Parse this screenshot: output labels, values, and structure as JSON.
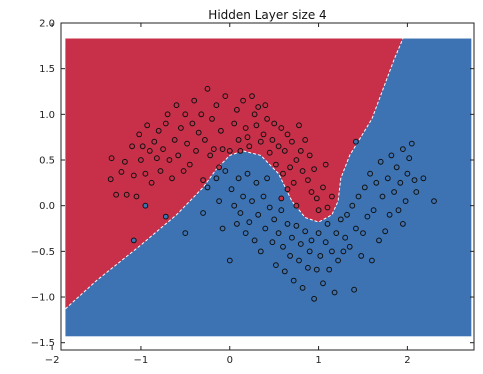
{
  "chart_data": {
    "type": "scatter",
    "title": "Hidden Layer size 4",
    "xlabel": "",
    "ylabel": "",
    "xlim": [
      -1.9,
      2.75
    ],
    "ylim": [
      -1.58,
      2.0
    ],
    "xticks": [
      -2,
      -1,
      0,
      1,
      2
    ],
    "xtick_labels": [
      "−2",
      "−1",
      "0",
      "1",
      "2"
    ],
    "yticks": [
      -1.5,
      -1.0,
      -0.5,
      0.0,
      0.5,
      1.0,
      1.5,
      2.0
    ],
    "ytick_labels": [
      "−1.5",
      "−1.0",
      "−0.5",
      "0.0",
      "0.5",
      "1.0",
      "1.5",
      "2.0"
    ],
    "grid": false,
    "colors": {
      "red_region": "#c8304a",
      "blue_region": "#3d73b3",
      "red_point": "#c8304a",
      "blue_point": "#3d73b3",
      "point_edge": "#111111",
      "boundary": "#ffffff"
    },
    "decision_boundary": [
      [
        -1.85,
        -1.13
      ],
      [
        -1.5,
        -0.82
      ],
      [
        -1.0,
        -0.43
      ],
      [
        -0.6,
        -0.1
      ],
      [
        -0.3,
        0.2
      ],
      [
        -0.15,
        0.4
      ],
      [
        0.0,
        0.55
      ],
      [
        0.15,
        0.6
      ],
      [
        0.35,
        0.55
      ],
      [
        0.55,
        0.35
      ],
      [
        0.7,
        0.05
      ],
      [
        0.85,
        -0.13
      ],
      [
        1.0,
        -0.18
      ],
      [
        1.15,
        -0.1
      ],
      [
        1.22,
        0.05
      ],
      [
        1.25,
        0.3
      ],
      [
        1.35,
        0.55
      ],
      [
        1.6,
        0.95
      ],
      [
        1.85,
        1.6
      ],
      [
        1.95,
        1.83
      ]
    ],
    "region_extent": {
      "x": [
        -1.85,
        2.72
      ],
      "y": [
        -1.43,
        1.83
      ]
    },
    "series": [
      {
        "class": 0,
        "points": [
          [
            -1.33,
            0.52
          ],
          [
            -1.34,
            0.29
          ],
          [
            -1.28,
            0.12
          ],
          [
            -1.22,
            0.37
          ],
          [
            -1.18,
            0.48
          ],
          [
            -1.16,
            0.12
          ],
          [
            -1.1,
            0.65
          ],
          [
            -1.08,
            0.33
          ],
          [
            -1.05,
            0.1
          ],
          [
            -1.02,
            0.78
          ],
          [
            -1.0,
            0.5
          ],
          [
            -0.98,
            0.65
          ],
          [
            -0.95,
            0.35
          ],
          [
            -0.93,
            0.88
          ],
          [
            -0.9,
            0.6
          ],
          [
            -0.88,
            0.25
          ],
          [
            -0.85,
            0.7
          ],
          [
            -0.82,
            0.52
          ],
          [
            -0.8,
            0.82
          ],
          [
            -0.78,
            0.38
          ],
          [
            -0.75,
            0.62
          ],
          [
            -0.72,
            0.9
          ],
          [
            -0.7,
            1.0
          ],
          [
            -0.68,
            0.5
          ],
          [
            -0.65,
            0.3
          ],
          [
            -0.62,
            0.72
          ],
          [
            -0.6,
            1.1
          ],
          [
            -0.58,
            0.55
          ],
          [
            -0.55,
            0.85
          ],
          [
            -0.52,
            0.38
          ],
          [
            -0.5,
            1.0
          ],
          [
            -0.48,
            0.68
          ],
          [
            -0.45,
            0.45
          ],
          [
            -0.42,
            0.9
          ],
          [
            -0.4,
            1.15
          ],
          [
            -0.38,
            0.6
          ],
          [
            -0.35,
            0.8
          ],
          [
            -0.32,
            1.0
          ],
          [
            -0.3,
            0.28
          ],
          [
            -0.28,
            0.72
          ],
          [
            -0.25,
            1.28
          ],
          [
            -0.22,
            0.55
          ],
          [
            -0.2,
            0.95
          ],
          [
            -0.18,
            0.62
          ],
          [
            -0.15,
            1.1
          ],
          [
            -0.12,
            0.42
          ],
          [
            -0.1,
            0.82
          ],
          [
            -0.08,
            0.62
          ],
          [
            -0.05,
            1.2
          ],
          [
            0.0,
            0.6
          ],
          [
            0.05,
            0.9
          ],
          [
            0.08,
            1.05
          ],
          [
            0.1,
            0.72
          ],
          [
            0.12,
            0.6
          ],
          [
            0.15,
            1.15
          ],
          [
            0.18,
            0.85
          ],
          [
            0.2,
            0.75
          ],
          [
            0.22,
            0.65
          ],
          [
            0.25,
            1.2
          ],
          [
            0.28,
            1.0
          ],
          [
            0.3,
            0.88
          ],
          [
            0.32,
            1.08
          ],
          [
            0.35,
            0.7
          ],
          [
            0.38,
            0.78
          ],
          [
            0.4,
            1.1
          ],
          [
            0.42,
            0.95
          ],
          [
            0.45,
            0.58
          ],
          [
            0.48,
            0.72
          ],
          [
            0.5,
            0.9
          ],
          [
            0.52,
            0.45
          ],
          [
            0.55,
            0.65
          ],
          [
            0.58,
            0.85
          ],
          [
            0.6,
            0.35
          ],
          [
            0.62,
            0.6
          ],
          [
            0.65,
            0.78
          ],
          [
            0.68,
            0.42
          ],
          [
            0.7,
            0.7
          ],
          [
            0.72,
            0.25
          ],
          [
            0.75,
            0.5
          ],
          [
            0.78,
            0.88
          ],
          [
            0.8,
            0.6
          ],
          [
            0.82,
            0.38
          ],
          [
            0.85,
            0.72
          ],
          [
            0.88,
            0.28
          ],
          [
            0.9,
            0.55
          ],
          [
            0.92,
            0.15
          ],
          [
            0.95,
            0.4
          ],
          [
            0.98,
            0.08
          ],
          [
            1.0,
            -0.05
          ],
          [
            1.05,
            0.2
          ],
          [
            1.08,
            0.45
          ],
          [
            1.1,
            -0.02
          ],
          [
            1.15,
            0.1
          ],
          [
            0.58,
            0.08
          ],
          [
            0.65,
            0.18
          ],
          [
            0.75,
            0.0
          ]
        ]
      },
      {
        "class": 1,
        "points": [
          [
            -1.08,
            -0.38
          ],
          [
            -0.95,
            0.0
          ],
          [
            -0.72,
            -0.12
          ],
          [
            -0.5,
            -0.3
          ],
          [
            -0.3,
            -0.08
          ],
          [
            -0.25,
            0.2
          ],
          [
            -0.15,
            0.3
          ],
          [
            -0.12,
            0.05
          ],
          [
            -0.08,
            -0.25
          ],
          [
            -0.05,
            0.38
          ],
          [
            0.0,
            -0.6
          ],
          [
            0.02,
            0.18
          ],
          [
            0.05,
            0.0
          ],
          [
            0.08,
            -0.2
          ],
          [
            0.1,
            0.3
          ],
          [
            0.12,
            -0.08
          ],
          [
            0.15,
            0.1
          ],
          [
            0.18,
            -0.3
          ],
          [
            0.2,
            0.35
          ],
          [
            0.22,
            -0.18
          ],
          [
            0.25,
            0.05
          ],
          [
            0.28,
            -0.38
          ],
          [
            0.3,
            0.25
          ],
          [
            0.32,
            -0.1
          ],
          [
            0.35,
            -0.5
          ],
          [
            0.38,
            0.1
          ],
          [
            0.4,
            -0.25
          ],
          [
            0.42,
            0.3
          ],
          [
            0.45,
            -0.02
          ],
          [
            0.48,
            -0.4
          ],
          [
            0.5,
            -0.15
          ],
          [
            0.52,
            -0.65
          ],
          [
            0.55,
            -0.3
          ],
          [
            0.58,
            -0.05
          ],
          [
            0.6,
            -0.45
          ],
          [
            0.62,
            -0.72
          ],
          [
            0.65,
            -0.2
          ],
          [
            0.68,
            -0.55
          ],
          [
            0.7,
            -0.35
          ],
          [
            0.72,
            -0.82
          ],
          [
            0.75,
            -0.22
          ],
          [
            0.78,
            -0.6
          ],
          [
            0.8,
            -0.42
          ],
          [
            0.82,
            -0.9
          ],
          [
            0.85,
            -0.28
          ],
          [
            0.88,
            -0.68
          ],
          [
            0.9,
            -0.5
          ],
          [
            0.92,
            -0.38
          ],
          [
            0.95,
            -1.02
          ],
          [
            0.98,
            -0.7
          ],
          [
            1.0,
            -0.3
          ],
          [
            1.02,
            -0.55
          ],
          [
            1.05,
            -0.85
          ],
          [
            1.08,
            -0.4
          ],
          [
            1.1,
            -0.2
          ],
          [
            1.12,
            -0.7
          ],
          [
            1.15,
            -0.5
          ],
          [
            1.18,
            -0.95
          ],
          [
            1.2,
            -0.3
          ],
          [
            1.22,
            -0.6
          ],
          [
            1.25,
            -0.15
          ],
          [
            1.28,
            -0.5
          ],
          [
            1.3,
            -0.35
          ],
          [
            1.32,
            -0.1
          ],
          [
            1.35,
            -0.45
          ],
          [
            1.38,
            0.0
          ],
          [
            1.4,
            -0.92
          ],
          [
            1.42,
            -0.25
          ],
          [
            1.45,
            0.1
          ],
          [
            1.48,
            -0.55
          ],
          [
            1.5,
            -0.3
          ],
          [
            1.52,
            0.2
          ],
          [
            1.55,
            -0.12
          ],
          [
            1.58,
            0.35
          ],
          [
            1.6,
            -0.6
          ],
          [
            1.62,
            -0.05
          ],
          [
            1.65,
            0.25
          ],
          [
            1.68,
            -0.38
          ],
          [
            1.7,
            0.48
          ],
          [
            1.72,
            0.1
          ],
          [
            1.75,
            -0.28
          ],
          [
            1.78,
            0.3
          ],
          [
            1.8,
            -0.1
          ],
          [
            1.82,
            0.55
          ],
          [
            1.85,
            0.15
          ],
          [
            1.88,
            0.42
          ],
          [
            1.9,
            -0.05
          ],
          [
            1.92,
            0.25
          ],
          [
            1.95,
            0.62
          ],
          [
            1.98,
            0.05
          ],
          [
            2.0,
            0.35
          ],
          [
            2.02,
            0.52
          ],
          [
            2.05,
            0.68
          ],
          [
            2.08,
            0.28
          ],
          [
            2.1,
            0.15
          ],
          [
            2.18,
            0.3
          ],
          [
            2.3,
            0.05
          ],
          [
            1.95,
            -0.2
          ],
          [
            1.42,
            0.7
          ]
        ]
      }
    ]
  }
}
